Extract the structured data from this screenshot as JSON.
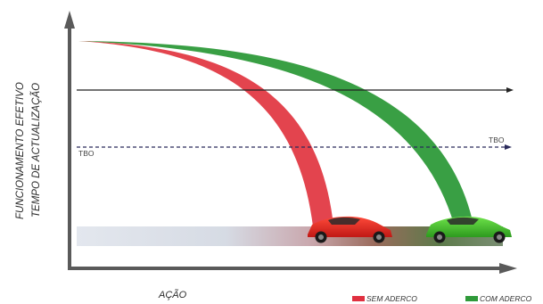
{
  "diagram": {
    "y_label_line1": "FUNCIONAMENTO EFETIVO",
    "y_label_line2": "TEMPO DE ACTUALIZAÇÃO",
    "x_label": "AÇÃO",
    "threshold_left_label": "TBO",
    "threshold_right_label": "TBO",
    "legend": [
      {
        "label": "SEM ADERCO",
        "color": "#e03040"
      },
      {
        "label": "COM ADERCO",
        "color": "#2f9a3a"
      }
    ],
    "colors": {
      "red_curve": "#e23a45",
      "green_curve": "#2e9a3a",
      "axis": "#555555",
      "floor_band": "#d8dde6"
    }
  }
}
